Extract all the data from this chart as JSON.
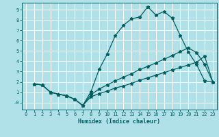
{
  "title": "",
  "xlabel": "Humidex (Indice chaleur)",
  "bg_color": "#b0e0e8",
  "line_color": "#006060",
  "grid_color": "#ffffff",
  "xlim": [
    -0.5,
    23.5
  ],
  "ylim": [
    -0.7,
    9.7
  ],
  "xticks": [
    0,
    1,
    2,
    3,
    4,
    5,
    6,
    7,
    8,
    9,
    10,
    11,
    12,
    13,
    14,
    15,
    16,
    17,
    18,
    19,
    20,
    21,
    22,
    23
  ],
  "yticks": [
    0,
    1,
    2,
    3,
    4,
    5,
    6,
    7,
    8,
    9
  ],
  "ytick_labels": [
    "-0",
    "1",
    "2",
    "3",
    "4",
    "5",
    "6",
    "7",
    "8",
    "9"
  ],
  "line1_x": [
    1,
    2,
    3,
    4,
    5,
    6,
    7,
    8,
    9,
    10,
    11,
    12,
    13,
    14,
    15,
    16,
    17,
    18,
    19,
    20,
    21,
    22,
    23
  ],
  "line1_y": [
    1.8,
    1.7,
    1.0,
    0.8,
    0.65,
    0.3,
    -0.3,
    1.05,
    3.2,
    4.7,
    6.5,
    7.5,
    8.15,
    8.3,
    9.3,
    8.5,
    8.85,
    8.2,
    6.5,
    4.9,
    3.7,
    2.1,
    2.0
  ],
  "line2_x": [
    1,
    2,
    3,
    4,
    5,
    6,
    7,
    8,
    9,
    10,
    11,
    12,
    13,
    14,
    15,
    16,
    17,
    18,
    19,
    20,
    21,
    22,
    23
  ],
  "line2_y": [
    1.8,
    1.7,
    1.0,
    0.8,
    0.65,
    0.3,
    -0.3,
    0.55,
    0.85,
    1.1,
    1.4,
    1.6,
    1.85,
    2.15,
    2.4,
    2.65,
    2.9,
    3.15,
    3.4,
    3.65,
    3.9,
    4.5,
    2.0
  ],
  "line3_x": [
    1,
    2,
    3,
    4,
    5,
    6,
    7,
    8,
    9,
    10,
    11,
    12,
    13,
    14,
    15,
    16,
    17,
    18,
    19,
    20,
    21,
    22,
    23
  ],
  "line3_y": [
    1.8,
    1.7,
    1.0,
    0.8,
    0.65,
    0.3,
    -0.3,
    0.75,
    1.3,
    1.7,
    2.1,
    2.45,
    2.8,
    3.2,
    3.5,
    3.85,
    4.2,
    4.55,
    4.95,
    5.3,
    4.85,
    3.7,
    2.0
  ]
}
